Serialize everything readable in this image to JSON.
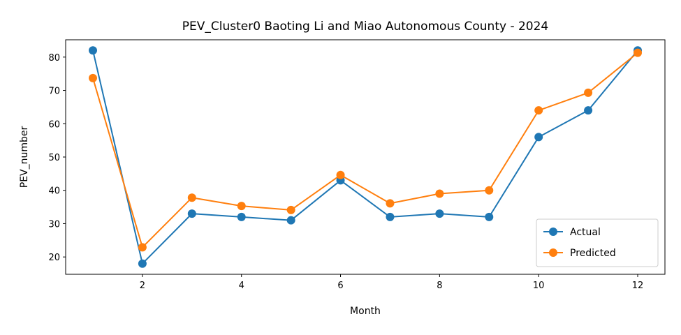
{
  "chart_data": {
    "type": "line",
    "title": "PEV_Cluster0 Baoting Li and Miao Autonomous County - 2024",
    "xlabel": "Month",
    "ylabel": "PEV_number",
    "xlim": [
      0.45,
      12.55
    ],
    "ylim": [
      14.8,
      85.2
    ],
    "x_ticks": [
      2,
      4,
      6,
      8,
      10,
      12
    ],
    "y_ticks": [
      20,
      30,
      40,
      50,
      60,
      70,
      80
    ],
    "grid": false,
    "legend_position": "lower-right",
    "x": [
      1,
      2,
      3,
      4,
      5,
      6,
      7,
      8,
      9,
      10,
      11,
      12
    ],
    "series": [
      {
        "name": "Actual",
        "color": "#1f77b4",
        "values": [
          82,
          18,
          33,
          32,
          31,
          43,
          32,
          33,
          32,
          56,
          64,
          82
        ]
      },
      {
        "name": "Predicted",
        "color": "#ff7f0e",
        "values": [
          73.7,
          22.9,
          37.8,
          35.3,
          34.1,
          44.6,
          36.1,
          39,
          40,
          64,
          69.3,
          81.3
        ]
      }
    ]
  }
}
